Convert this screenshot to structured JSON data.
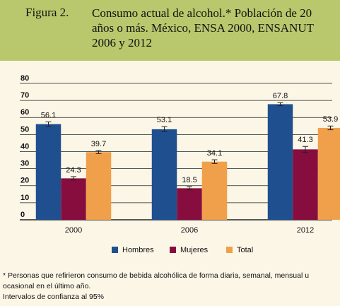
{
  "chart_data": {
    "type": "bar",
    "figure_label": "Figura 2.",
    "title": "Consumo actual de alcohol.* Población de 20 años o más. México, ENSA 2000, ENSANUT 2006 y 2012",
    "categories": [
      "2000",
      "2006",
      "2012"
    ],
    "series": [
      {
        "name": "Hombres",
        "color": "#1f4f8f",
        "values": [
          56.1,
          53.1,
          67.8
        ],
        "errors": [
          1.3,
          1.5,
          0.9
        ]
      },
      {
        "name": "Mujeres",
        "color": "#870d3e",
        "values": [
          24.3,
          18.5,
          41.3
        ],
        "errors": [
          1.0,
          0.9,
          1.7
        ]
      },
      {
        "name": "Total",
        "color": "#f0a04a",
        "values": [
          39.7,
          34.1,
          53.9
        ],
        "errors": [
          0.9,
          1.1,
          1.1
        ]
      }
    ],
    "ylim": [
      0,
      80
    ],
    "yticks": [
      0,
      10,
      20,
      30,
      40,
      50,
      60,
      70,
      80
    ],
    "grid": true,
    "notes": [
      "* Personas que refirieron consumo de bebida alcohólica de forma diaria, semanal, mensual u ocasional en el último año.",
      "Intervalos de confianza al 95%"
    ]
  }
}
